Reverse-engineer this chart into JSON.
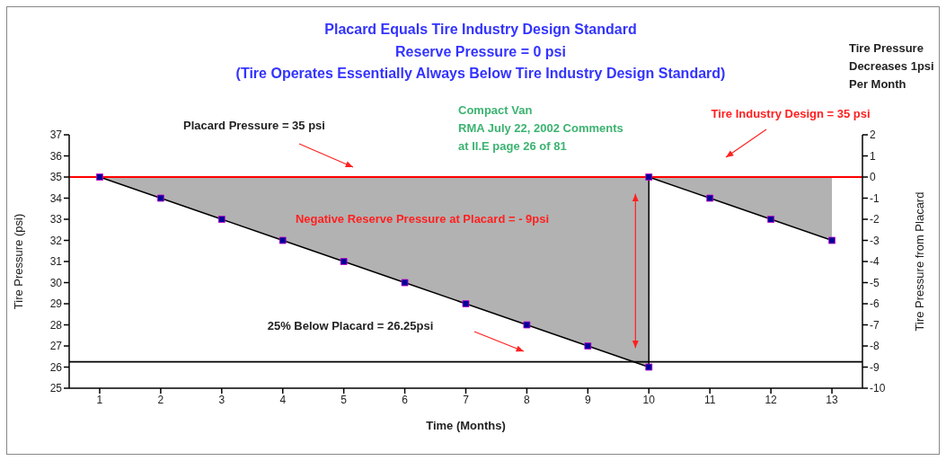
{
  "chart_data": {
    "type": "line",
    "title": "Placard Equals Tire Industry Design Standard",
    "subtitle": "Reserve Pressure = 0 psi\n(Tire Operates Essentially Always Below Tire Industry Design Standard)",
    "xlabel": "Time (Months)",
    "ylabel": "Tire Pressure (psi)",
    "y2label": "Tire Pressure from Placard",
    "xlim": [
      0.5,
      13.5
    ],
    "xticks": [
      1,
      2,
      3,
      4,
      5,
      6,
      7,
      8,
      9,
      10,
      11,
      12,
      13
    ],
    "ylim": [
      25,
      37
    ],
    "yticks": [
      25,
      26,
      27,
      28,
      29,
      30,
      31,
      32,
      33,
      34,
      35,
      36,
      37
    ],
    "y2lim": [
      -10,
      2
    ],
    "y2ticks": [
      -10,
      -9,
      -8,
      -7,
      -6,
      -5,
      -4,
      -3,
      -2,
      -1,
      0,
      1,
      2
    ],
    "series": [
      {
        "color": "#000000",
        "x": [
          1,
          2,
          3,
          4,
          5,
          6,
          7,
          8,
          9,
          10,
          10,
          11,
          12,
          13
        ],
        "values": [
          35,
          34,
          33,
          32,
          31,
          30,
          29,
          28,
          27,
          26,
          35,
          34,
          33,
          32
        ],
        "lower": [
          35,
          34,
          33,
          32,
          31,
          30,
          29,
          28,
          27,
          26,
          35,
          34,
          33,
          32
        ],
        "upper": [
          35,
          35,
          35,
          35,
          35,
          35,
          35,
          35,
          35,
          35,
          35,
          35,
          35,
          35
        ]
      }
    ],
    "marker": "square",
    "grid": false,
    "legend": false,
    "ref_lines": [
      {
        "axis": "y",
        "value": 35,
        "color": "#ff0000"
      },
      {
        "axis": "y",
        "value": 26.25,
        "color": "#000000"
      }
    ],
    "annotations": [
      "Tire Pressure\nDecreases 1psi\nPer Month",
      "Compact Van\nRMA July 22, 2002 Comments\nat II.E page 26 of 81",
      "Placard Pressure = 35 psi",
      "Tire Industry Design = 35 psi",
      "Negative Reserve Pressure at Placard  = - 9psi",
      "25% Below Placard = 26.25psi"
    ]
  }
}
